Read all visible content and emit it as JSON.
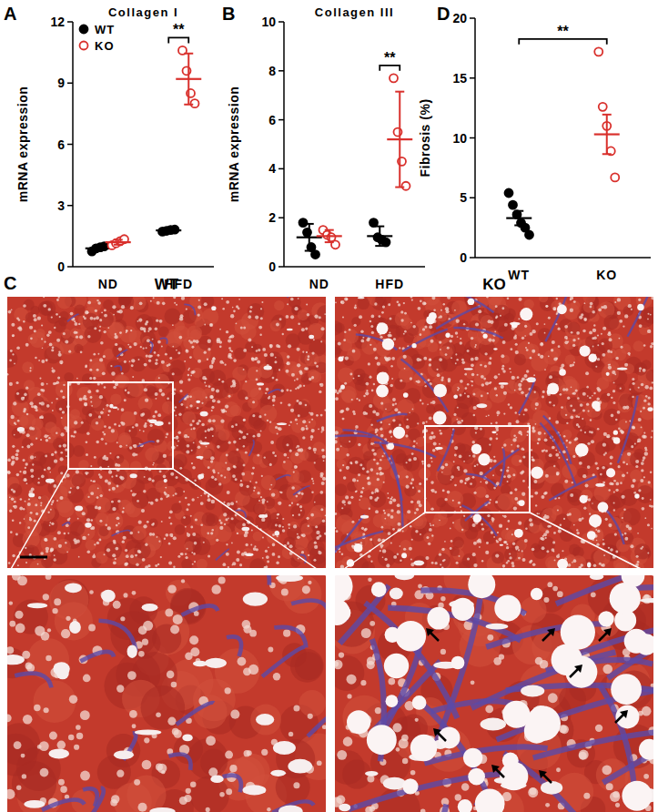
{
  "chart_data": [
    {
      "type": "scatter",
      "panel": "A",
      "title": "Collagen I",
      "y_label": "mRNA expression",
      "categories": [
        "ND",
        "HFD"
      ],
      "ylim": [
        0,
        12
      ],
      "yticks": [
        0,
        3,
        6,
        9,
        12
      ],
      "legend": "upper left",
      "series": [
        {
          "name": "WT",
          "color": "#000000",
          "marker": "filled",
          "values": [
            0.9,
            1.78
          ],
          "error": [
            0.12,
            0.05
          ],
          "points": [
            [
              0.75,
              0.9,
              0.95,
              1.0
            ],
            [
              1.72,
              1.76,
              1.8,
              1.82
            ]
          ]
        },
        {
          "name": "KO",
          "color": "#d9302c",
          "marker": "open",
          "values": [
            1.2,
            9.2
          ],
          "error": [
            0.12,
            1.25
          ],
          "points": [
            [
              1.05,
              1.15,
              1.25,
              1.35
            ],
            [
              10.6,
              9.6,
              8.5,
              8.0
            ]
          ]
        }
      ],
      "annotations": [
        {
          "text": "**",
          "category": "HFD"
        }
      ]
    },
    {
      "type": "scatter",
      "panel": "B",
      "title": "Collagen III",
      "y_label": "mRNA expression",
      "categories": [
        "ND",
        "HFD"
      ],
      "ylim": [
        0,
        10
      ],
      "yticks": [
        0,
        2,
        4,
        6,
        8,
        10
      ],
      "series": [
        {
          "name": "WT",
          "color": "#000000",
          "marker": "filled",
          "values": [
            1.2,
            1.25
          ],
          "error": [
            0.55,
            0.4
          ],
          "points": [
            [
              1.8,
              1.4,
              0.8,
              0.5
            ],
            [
              1.8,
              1.2,
              1.1,
              1.0
            ]
          ]
        },
        {
          "name": "KO",
          "color": "#d9302c",
          "marker": "open",
          "values": [
            1.25,
            5.2
          ],
          "error": [
            0.25,
            1.95
          ],
          "points": [
            [
              1.5,
              1.3,
              1.2,
              0.9
            ],
            [
              7.7,
              5.5,
              4.3,
              3.3
            ]
          ]
        }
      ],
      "annotations": [
        {
          "text": "**",
          "category": "HFD"
        }
      ]
    },
    {
      "type": "image",
      "panel": "C",
      "labels": [
        "WT",
        "KO"
      ]
    },
    {
      "type": "scatter",
      "panel": "D",
      "y_label": "Fibrosis (%)",
      "categories": [
        "WT",
        "KO"
      ],
      "ylim": [
        0,
        20
      ],
      "yticks": [
        0,
        5,
        10,
        15,
        20
      ],
      "series": [
        {
          "color": "#000000",
          "marker": "filled",
          "values": [
            3.3,
            null
          ],
          "error": [
            0.6,
            null
          ],
          "points": [
            [
              5.4,
              4.4,
              3.6,
              2.9,
              2.5,
              1.9
            ],
            []
          ]
        },
        {
          "color": "#d9302c",
          "marker": "open",
          "values": [
            null,
            10.3
          ],
          "error": [
            null,
            1.65
          ],
          "points": [
            [],
            [
              17.2,
              12.6,
              11.0,
              8.9,
              6.7
            ]
          ]
        }
      ],
      "annotations": [
        {
          "text": "**",
          "category": "KO"
        }
      ]
    }
  ]
}
